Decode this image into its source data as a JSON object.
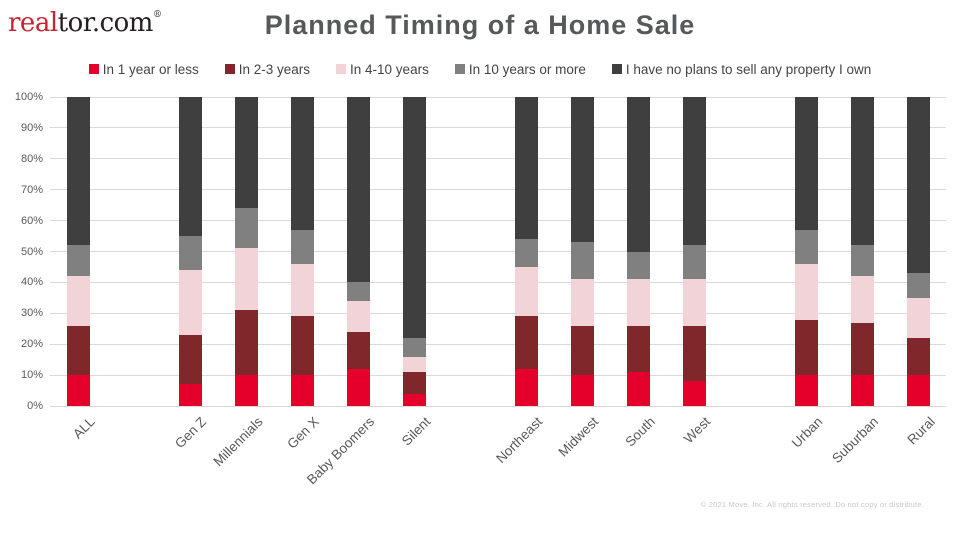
{
  "logo": {
    "prefix": "real",
    "suffix": "tor.com",
    "registered": "®"
  },
  "title": "Planned Timing of a Home Sale",
  "footer": {
    "copyright": "© 2021 Move, Inc. All rights reserved. Do not copy or distribute."
  },
  "colors": {
    "logo_red": "#C62430",
    "logo_dark": "#231F20",
    "title_gray": "#57585A",
    "axis_text": "#595959",
    "gridline": "#D9D9D9"
  },
  "chart_data": {
    "type": "bar",
    "stacked": true,
    "orientation": "vertical",
    "title": "Planned Timing of a Home Sale",
    "xlabel": "",
    "ylabel": "",
    "ylim": [
      0,
      100
    ],
    "ytick_step": 10,
    "ytick_suffix": "%",
    "grid": true,
    "legend_position": "top",
    "series_names": [
      "In 1 year or less",
      "In 2-3 years",
      "In 4-10 years",
      "In 10 years or more",
      "I have no plans to sell any property I own"
    ],
    "series_colors": [
      "#E4002B",
      "#7F272B",
      "#F2D4D8",
      "#808080",
      "#3F3F3F"
    ],
    "groups": [
      {
        "name": "all",
        "categories": [
          {
            "label": "ALL",
            "values": [
              10,
              16,
              16,
              10,
              48
            ]
          }
        ]
      },
      {
        "name": "generations",
        "categories": [
          {
            "label": "Gen Z",
            "values": [
              7,
              16,
              21,
              11,
              45
            ]
          },
          {
            "label": "Millennials",
            "values": [
              10,
              21,
              20,
              13,
              36
            ]
          },
          {
            "label": "Gen X",
            "values": [
              10,
              19,
              17,
              11,
              43
            ]
          },
          {
            "label": "Baby Boomers",
            "values": [
              12,
              12,
              10,
              6,
              60
            ]
          },
          {
            "label": "Silent",
            "values": [
              4,
              7,
              5,
              6,
              78
            ]
          }
        ]
      },
      {
        "name": "regions",
        "categories": [
          {
            "label": "Northeast",
            "values": [
              12,
              17,
              16,
              9,
              46
            ]
          },
          {
            "label": "Midwest",
            "values": [
              10,
              16,
              15,
              12,
              47
            ]
          },
          {
            "label": "South",
            "values": [
              11,
              15,
              15,
              9,
              50
            ]
          },
          {
            "label": "West",
            "values": [
              8,
              18,
              15,
              11,
              48
            ]
          }
        ]
      },
      {
        "name": "urbanicity",
        "categories": [
          {
            "label": "Urban",
            "values": [
              10,
              18,
              18,
              11,
              43
            ]
          },
          {
            "label": "Suburban",
            "values": [
              10,
              17,
              15,
              10,
              48
            ]
          },
          {
            "label": "Rural",
            "values": [
              10,
              12,
              13,
              8,
              57
            ]
          }
        ]
      }
    ]
  }
}
